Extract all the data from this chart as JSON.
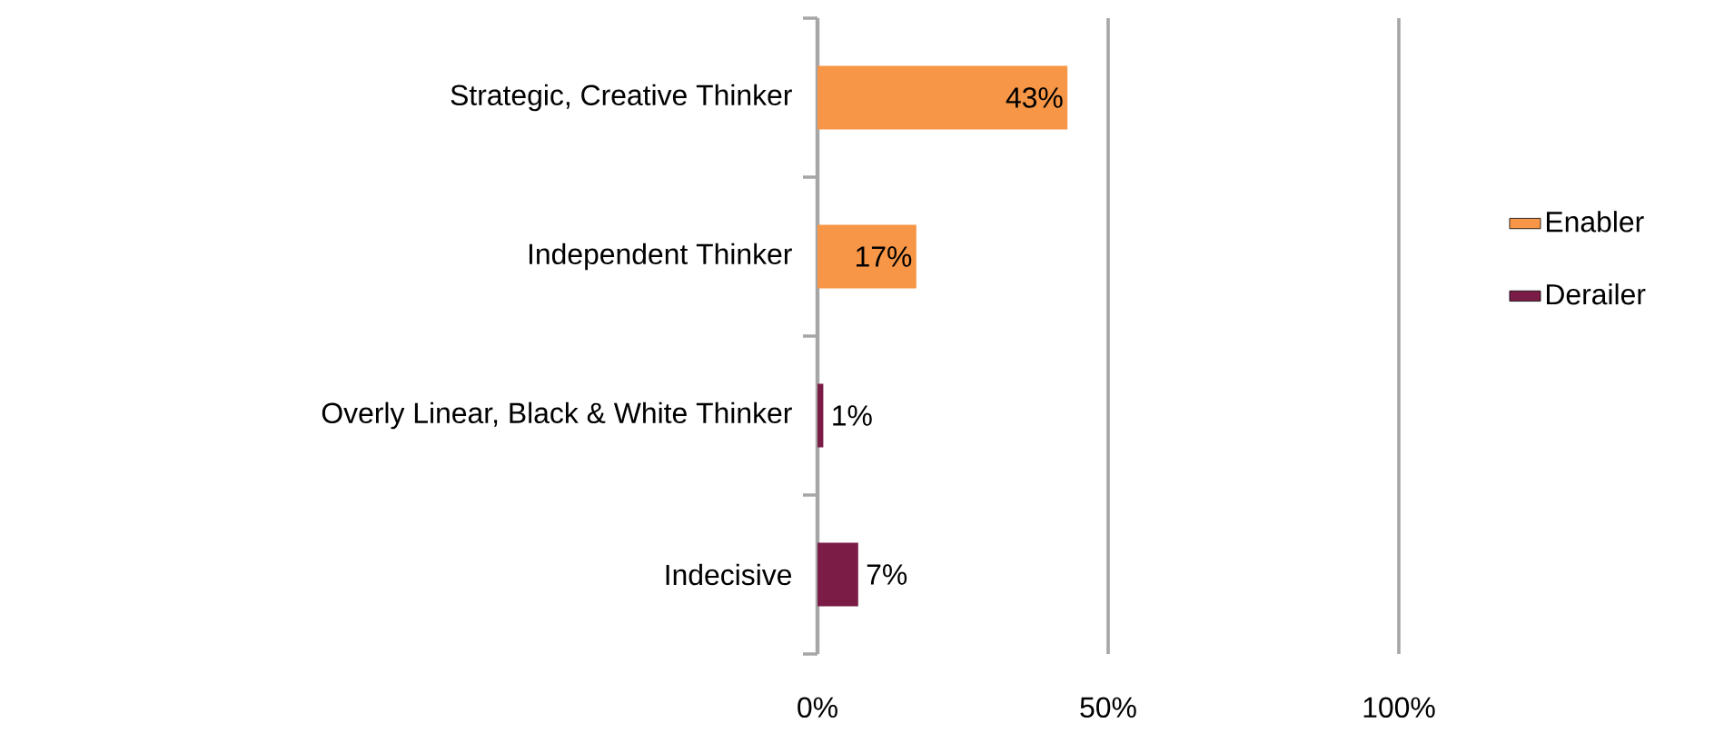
{
  "chart_data": {
    "type": "bar",
    "orientation": "horizontal",
    "categories": [
      "Strategic, Creative Thinker",
      "Independent Thinker",
      "Overly Linear, Black & White Thinker",
      "Indecisive"
    ],
    "series": [
      {
        "name": "Enabler",
        "color": "#f79646",
        "values": [
          43,
          17,
          null,
          null
        ],
        "value_labels": [
          "43%",
          "17%",
          null,
          null
        ]
      },
      {
        "name": "Derailer",
        "color": "#7b1c46",
        "values": [
          null,
          null,
          1,
          7
        ],
        "value_labels": [
          null,
          null,
          "1%",
          "7%"
        ]
      }
    ],
    "xlim": [
      0,
      100
    ],
    "xticks": [
      {
        "value": 0,
        "label": "0%"
      },
      {
        "value": 50,
        "label": "50%"
      },
      {
        "value": 100,
        "label": "100%"
      }
    ],
    "grid": "x",
    "legend": "right"
  }
}
